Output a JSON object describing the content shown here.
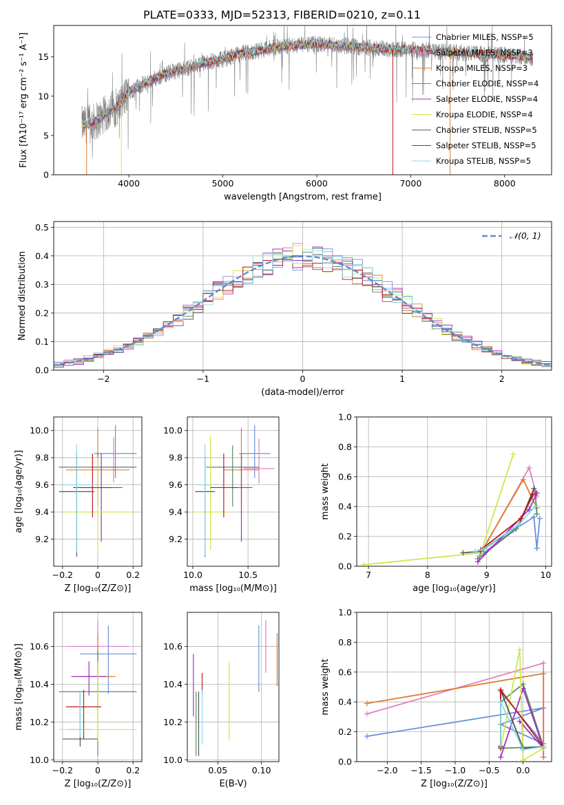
{
  "figure": {
    "title": "PLATE=0333, MJD=52313, FIBERID=0210, z=0.11"
  },
  "colors": {
    "chabrier_miles": "#6a8fdc",
    "salpeter_miles": "#e27fbf",
    "kroupa_miles": "#e07a2a",
    "chabrier_elodie": "#5a8a6a",
    "salpeter_elodie": "#9b30c0",
    "kroupa_elodie": "#cfe84a",
    "chabrier_stelib": "#555555",
    "salpeter_stelib": "#c01818",
    "kroupa_stelib": "#88d8e8",
    "data": "#808080",
    "normal": "#5b8ad6"
  },
  "chart_data": [
    {
      "id": "spectrum",
      "type": "line",
      "xlabel": "wavelength [Angstrom, rest frame]",
      "ylabel": "Flux [fλ10⁻¹⁷ erg cm⁻² s⁻¹ A⁻¹]",
      "xlim": [
        3200,
        8500
      ],
      "ylim": [
        0,
        19
      ],
      "xticks": [
        4000,
        5000,
        6000,
        7000,
        8000
      ],
      "yticks": [
        0,
        5,
        10,
        15
      ],
      "legend_position": "top-right",
      "legend": [
        {
          "label": "Chabrier MILES, NSSP=5",
          "color_key": "chabrier_miles"
        },
        {
          "label": "Salpeter MILES, NSSP=3",
          "color_key": "salpeter_miles"
        },
        {
          "label": "Kroupa MILES, NSSP=3",
          "color_key": "kroupa_miles"
        },
        {
          "label": "Chabrier ELODIE, NSSP=4",
          "color_key": "chabrier_elodie"
        },
        {
          "label": "Salpeter ELODIE, NSSP=4",
          "color_key": "salpeter_elodie"
        },
        {
          "label": "Kroupa ELODIE, NSSP=4",
          "color_key": "kroupa_elodie"
        },
        {
          "label": "Chabrier STELIB, NSSP=5",
          "color_key": "chabrier_stelib"
        },
        {
          "label": "Salpeter STELIB, NSSP=5",
          "color_key": "salpeter_stelib"
        },
        {
          "label": "Kroupa STELIB, NSSP=5",
          "color_key": "kroupa_stelib"
        }
      ],
      "continuum": {
        "x": [
          3500,
          3600,
          3700,
          3800,
          3900,
          4000,
          4200,
          4400,
          4600,
          4800,
          5000,
          5200,
          5400,
          5600,
          5800,
          6000,
          6200,
          6400,
          6600,
          6800,
          7000,
          7200,
          7400,
          7600,
          7800,
          8000,
          8200,
          8300
        ],
        "y": [
          6.3,
          6.5,
          7.2,
          8.2,
          8.8,
          10.6,
          11.8,
          12.9,
          13.5,
          14.2,
          14.7,
          15.4,
          15.8,
          16.3,
          16.5,
          16.6,
          16.5,
          16.3,
          16.1,
          16.0,
          15.9,
          15.8,
          15.6,
          15.5,
          15.3,
          15.2,
          15.0,
          14.9
        ]
      },
      "spike_drops": [
        {
          "x": 3550,
          "y": 0,
          "color_key": "kroupa_miles"
        },
        {
          "x": 3920,
          "y": 0,
          "color_key": "kroupa_elodie"
        },
        {
          "x": 6810,
          "y": 0,
          "color_key": "salpeter_stelib"
        },
        {
          "x": 7420,
          "y": 0,
          "color_key": "kroupa_miles"
        }
      ]
    },
    {
      "id": "residuals",
      "type": "bar",
      "xlabel": "(data-model)/error",
      "ylabel": "Normed distribution",
      "xlim": [
        -2.5,
        2.5
      ],
      "ylim": [
        0,
        0.52
      ],
      "xticks": [
        -2,
        -1,
        0,
        1,
        2
      ],
      "yticks": [
        0.0,
        0.1,
        0.2,
        0.3,
        0.4,
        0.5
      ],
      "legend_position": "top-right",
      "legend": [
        {
          "label": "𝒩(0, 1)",
          "color_key": "normal"
        }
      ],
      "bin_width": 0.1,
      "normal_mean": 0,
      "normal_sigma": 1
    },
    {
      "id": "age_vs_Z",
      "type": "scatter",
      "xlabel": "Z [log₁₀(Z/Z⊙)]",
      "ylabel": "age  [log₁₀(age/yr)]",
      "xlim": [
        -0.25,
        0.25
      ],
      "ylim": [
        9.0,
        10.1
      ],
      "xticks": [
        -0.2,
        0.0,
        0.2
      ],
      "yticks": [
        9.2,
        9.4,
        9.6,
        9.8,
        10.0
      ],
      "points": [
        {
          "x": 0.1,
          "y": 9.83,
          "xerr": 0.12,
          "yerr_lo": 0.18,
          "yerr_hi": 0.21,
          "color_key": "chabrier_miles"
        },
        {
          "x": 0.09,
          "y": 9.73,
          "xerr": 0.12,
          "yerr_lo": 0.11,
          "yerr_hi": 0.22,
          "color_key": "salpeter_miles"
        },
        {
          "x": 0.0,
          "y": 9.71,
          "xerr": 0.18,
          "yerr_lo": 0.25,
          "yerr_hi": 0.31,
          "color_key": "kroupa_miles"
        },
        {
          "x": 0.0,
          "y": 9.73,
          "xerr": 0.22,
          "yerr_lo": 0.29,
          "yerr_hi": 0.11,
          "color_key": "chabrier_elodie"
        },
        {
          "x": 0.02,
          "y": 9.58,
          "xerr": 0.12,
          "yerr_lo": 0.4,
          "yerr_hi": 0.25,
          "color_key": "salpeter_elodie"
        },
        {
          "x": 0.0,
          "y": 9.4,
          "xerr": 0.2,
          "yerr_lo": 0.28,
          "yerr_hi": 0.4,
          "color_key": "kroupa_elodie"
        },
        {
          "x": -0.12,
          "y": 9.55,
          "xerr": 0.1,
          "yerr_lo": 0.48,
          "yerr_hi": 0.28,
          "color_key": "chabrier_stelib"
        },
        {
          "x": -0.03,
          "y": 9.58,
          "xerr": 0.11,
          "yerr_lo": 0.22,
          "yerr_hi": 0.25,
          "color_key": "salpeter_stelib"
        },
        {
          "x": -0.12,
          "y": 9.6,
          "xerr": 0.1,
          "yerr_lo": 0.5,
          "yerr_hi": 0.3,
          "color_key": "kroupa_stelib"
        }
      ]
    },
    {
      "id": "age_vs_mass",
      "type": "scatter",
      "xlabel": "mass [log₁₀(M/M⊙)]",
      "ylabel": "",
      "xlim": [
        9.95,
        10.78
      ],
      "ylim": [
        9.0,
        10.1
      ],
      "xticks": [
        10.0,
        10.5
      ],
      "yticks": [
        9.2,
        9.4,
        9.6,
        9.8,
        10.0
      ],
      "points": [
        {
          "x": 10.56,
          "y": 9.83,
          "xerr": 0.14,
          "yerr_lo": 0.18,
          "yerr_hi": 0.21,
          "color_key": "chabrier_miles"
        },
        {
          "x": 10.6,
          "y": 9.72,
          "xerr": 0.14,
          "yerr_lo": 0.11,
          "yerr_hi": 0.22,
          "color_key": "salpeter_miles"
        },
        {
          "x": 10.44,
          "y": 9.71,
          "xerr": 0.16,
          "yerr_lo": 0.25,
          "yerr_hi": 0.31,
          "color_key": "kroupa_miles"
        },
        {
          "x": 10.36,
          "y": 9.73,
          "xerr": 0.24,
          "yerr_lo": 0.29,
          "yerr_hi": 0.16,
          "color_key": "chabrier_elodie"
        },
        {
          "x": 10.44,
          "y": 9.58,
          "xerr": 0.1,
          "yerr_lo": 0.4,
          "yerr_hi": 0.25,
          "color_key": "salpeter_elodie"
        },
        {
          "x": 10.16,
          "y": 9.4,
          "xerr": 0.16,
          "yerr_lo": 0.28,
          "yerr_hi": 0.56,
          "color_key": "kroupa_elodie"
        },
        {
          "x": 10.11,
          "y": 9.55,
          "xerr": 0.09,
          "yerr_lo": 0.48,
          "yerr_hi": 0.27,
          "color_key": "chabrier_stelib"
        },
        {
          "x": 10.28,
          "y": 9.58,
          "xerr": 0.12,
          "yerr_lo": 0.22,
          "yerr_hi": 0.25,
          "color_key": "salpeter_stelib"
        },
        {
          "x": 10.11,
          "y": 9.6,
          "xerr": 0.06,
          "yerr_lo": 0.52,
          "yerr_hi": 0.3,
          "color_key": "kroupa_stelib"
        }
      ]
    },
    {
      "id": "mass_weight_vs_age",
      "type": "line",
      "xlabel": "age  [log₁₀(age/yr)]",
      "ylabel": "mass weight",
      "xlim": [
        6.8,
        10.1
      ],
      "ylim": [
        0,
        1.0
      ],
      "xticks": [
        7,
        8,
        9,
        10
      ],
      "yticks": [
        0.0,
        0.2,
        0.4,
        0.6,
        0.8,
        1.0
      ],
      "series": [
        {
          "color_key": "chabrier_miles",
          "x": [
            8.95,
            9.45,
            9.8,
            9.85,
            9.9
          ],
          "y": [
            0.09,
            0.24,
            0.33,
            0.12,
            0.32
          ]
        },
        {
          "color_key": "salpeter_miles",
          "x": [
            8.88,
            9.72,
            9.85
          ],
          "y": [
            0.07,
            0.66,
            0.47
          ]
        },
        {
          "color_key": "kroupa_miles",
          "x": [
            8.9,
            9.62,
            9.85
          ],
          "y": [
            0.09,
            0.58,
            0.39
          ]
        },
        {
          "color_key": "chabrier_elodie",
          "x": [
            8.85,
            9.5,
            9.82,
            9.85
          ],
          "y": [
            0.05,
            0.25,
            0.5,
            0.35
          ]
        },
        {
          "color_key": "salpeter_elodie",
          "x": [
            8.85,
            9.72,
            9.85
          ],
          "y": [
            0.03,
            0.38,
            0.49
          ]
        },
        {
          "color_key": "kroupa_elodie",
          "x": [
            6.92,
            8.9,
            9.45
          ],
          "y": [
            0.01,
            0.09,
            0.75
          ]
        },
        {
          "color_key": "chabrier_stelib",
          "x": [
            8.6,
            8.9,
            9.55,
            9.8
          ],
          "y": [
            0.09,
            0.1,
            0.28,
            0.52
          ]
        },
        {
          "color_key": "salpeter_stelib",
          "x": [
            8.9,
            9.58,
            9.78
          ],
          "y": [
            0.11,
            0.32,
            0.48
          ]
        },
        {
          "color_key": "kroupa_stelib",
          "x": [
            8.8,
            8.92,
            9.55,
            9.82
          ],
          "y": [
            0.1,
            0.11,
            0.28,
            0.4
          ]
        }
      ]
    },
    {
      "id": "mass_vs_Z",
      "type": "scatter",
      "xlabel": "Z [log₁₀(Z/Z⊙)]",
      "ylabel": "mass [log₁₀(M/M⊙)]",
      "xlim": [
        -0.25,
        0.25
      ],
      "ylim": [
        9.99,
        10.78
      ],
      "xticks": [
        -0.2,
        0.0,
        0.2
      ],
      "yticks": [
        10.0,
        10.2,
        10.4,
        10.6
      ],
      "points": [
        {
          "x": 0.06,
          "y": 10.56,
          "xerr": 0.16,
          "yerr_lo": 0.21,
          "yerr_hi": 0.15,
          "color_key": "chabrier_miles"
        },
        {
          "x": 0.0,
          "y": 10.6,
          "xerr": 0.18,
          "yerr_lo": 0.14,
          "yerr_hi": 0.14,
          "color_key": "salpeter_miles"
        },
        {
          "x": 0.0,
          "y": 10.44,
          "xerr": 0.1,
          "yerr_lo": 0.16,
          "yerr_hi": 0.23,
          "color_key": "kroupa_miles"
        },
        {
          "x": 0.0,
          "y": 10.36,
          "xerr": 0.22,
          "yerr_lo": 0.34,
          "yerr_hi": 0.22,
          "color_key": "chabrier_elodie"
        },
        {
          "x": -0.05,
          "y": 10.44,
          "xerr": 0.1,
          "yerr_lo": 0.1,
          "yerr_hi": 0.08,
          "color_key": "salpeter_elodie"
        },
        {
          "x": 0.0,
          "y": 10.16,
          "xerr": 0.22,
          "yerr_lo": 0.06,
          "yerr_hi": 0.36,
          "color_key": "kroupa_elodie"
        },
        {
          "x": -0.1,
          "y": 10.11,
          "xerr": 0.1,
          "yerr_lo": 0.04,
          "yerr_hi": 0.25,
          "color_key": "chabrier_stelib"
        },
        {
          "x": -0.08,
          "y": 10.28,
          "xerr": 0.1,
          "yerr_lo": 0.17,
          "yerr_hi": 0.09,
          "color_key": "salpeter_stelib"
        },
        {
          "x": -0.1,
          "y": 10.16,
          "xerr": 0.06,
          "yerr_lo": 0.04,
          "yerr_hi": 0.2,
          "color_key": "kroupa_stelib"
        }
      ]
    },
    {
      "id": "mass_vs_ebv",
      "type": "scatter",
      "xlabel": "E(B-V)",
      "ylabel": "",
      "xlim": [
        0.015,
        0.12
      ],
      "ylim": [
        9.99,
        10.78
      ],
      "xticks": [
        0.05,
        0.1
      ],
      "yticks": [
        10.0,
        10.2,
        10.4,
        10.6
      ],
      "points": [
        {
          "x": 0.097,
          "y": 10.56,
          "yerr_lo": 0.2,
          "yerr_hi": 0.15,
          "color_key": "chabrier_miles"
        },
        {
          "x": 0.105,
          "y": 10.6,
          "yerr_lo": 0.14,
          "yerr_hi": 0.14,
          "color_key": "salpeter_miles"
        },
        {
          "x": 0.118,
          "y": 10.53,
          "yerr_lo": 0.14,
          "yerr_hi": 0.14,
          "color_key": "kroupa_miles"
        },
        {
          "x": 0.025,
          "y": 10.18,
          "yerr_lo": 0.16,
          "yerr_hi": 0.18,
          "color_key": "chabrier_elodie"
        },
        {
          "x": 0.022,
          "y": 10.39,
          "yerr_lo": 0.16,
          "yerr_hi": 0.17,
          "color_key": "salpeter_elodie"
        },
        {
          "x": 0.063,
          "y": 10.31,
          "yerr_lo": 0.21,
          "yerr_hi": 0.21,
          "color_key": "kroupa_elodie"
        },
        {
          "x": 0.028,
          "y": 10.18,
          "yerr_lo": 0.16,
          "yerr_hi": 0.18,
          "color_key": "chabrier_stelib"
        },
        {
          "x": 0.032,
          "y": 10.41,
          "yerr_lo": 0.06,
          "yerr_hi": 0.05,
          "color_key": "salpeter_stelib"
        },
        {
          "x": 0.032,
          "y": 10.22,
          "yerr_lo": 0.14,
          "yerr_hi": 0.15,
          "color_key": "kroupa_stelib"
        }
      ]
    },
    {
      "id": "mass_weight_vs_Z",
      "type": "line",
      "xlabel": "Z [log₁₀(Z/Z⊙)]",
      "ylabel": "mass weight",
      "xlim": [
        -2.45,
        0.42
      ],
      "ylim": [
        0,
        1.0
      ],
      "xticks": [
        -2.0,
        -1.5,
        -1.0,
        -0.5,
        0.0
      ],
      "yticks": [
        0.0,
        0.2,
        0.4,
        0.6,
        0.8,
        1.0
      ],
      "series": [
        {
          "color_key": "chabrier_miles",
          "x": [
            -2.3,
            0.3,
            -0.33,
            0.3,
            -0.33
          ],
          "y": [
            0.17,
            0.36,
            0.25,
            0.12,
            0.47
          ]
        },
        {
          "color_key": "salpeter_miles",
          "x": [
            -2.3,
            0.3,
            0.3
          ],
          "y": [
            0.32,
            0.66,
            0.03
          ]
        },
        {
          "color_key": "kroupa_miles",
          "x": [
            -2.3,
            0.3,
            0.3
          ],
          "y": [
            0.39,
            0.59,
            0.03
          ]
        },
        {
          "color_key": "chabrier_elodie",
          "x": [
            -0.33,
            0.0,
            0.3,
            -0.33
          ],
          "y": [
            0.4,
            0.52,
            0.1,
            0.09
          ]
        },
        {
          "color_key": "salpeter_elodie",
          "x": [
            -0.33,
            0.0,
            0.3,
            -0.05
          ],
          "y": [
            0.03,
            0.49,
            0.09,
            0.27
          ]
        },
        {
          "color_key": "kroupa_elodie",
          "x": [
            -0.33,
            -0.05,
            0.0,
            0.3
          ],
          "y": [
            0.09,
            0.75,
            0.01,
            0.09
          ]
        },
        {
          "color_key": "chabrier_stelib",
          "x": [
            -0.33,
            -0.33,
            0.0,
            0.3
          ],
          "y": [
            0.09,
            0.48,
            0.09,
            0.1
          ]
        },
        {
          "color_key": "salpeter_stelib",
          "x": [
            -0.33,
            -0.33,
            0.3
          ],
          "y": [
            0.1,
            0.48,
            0.1
          ]
        },
        {
          "color_key": "kroupa_stelib",
          "x": [
            -0.33,
            -0.33,
            0.0,
            0.3
          ],
          "y": [
            0.11,
            0.4,
            0.08,
            0.1
          ]
        }
      ]
    }
  ]
}
